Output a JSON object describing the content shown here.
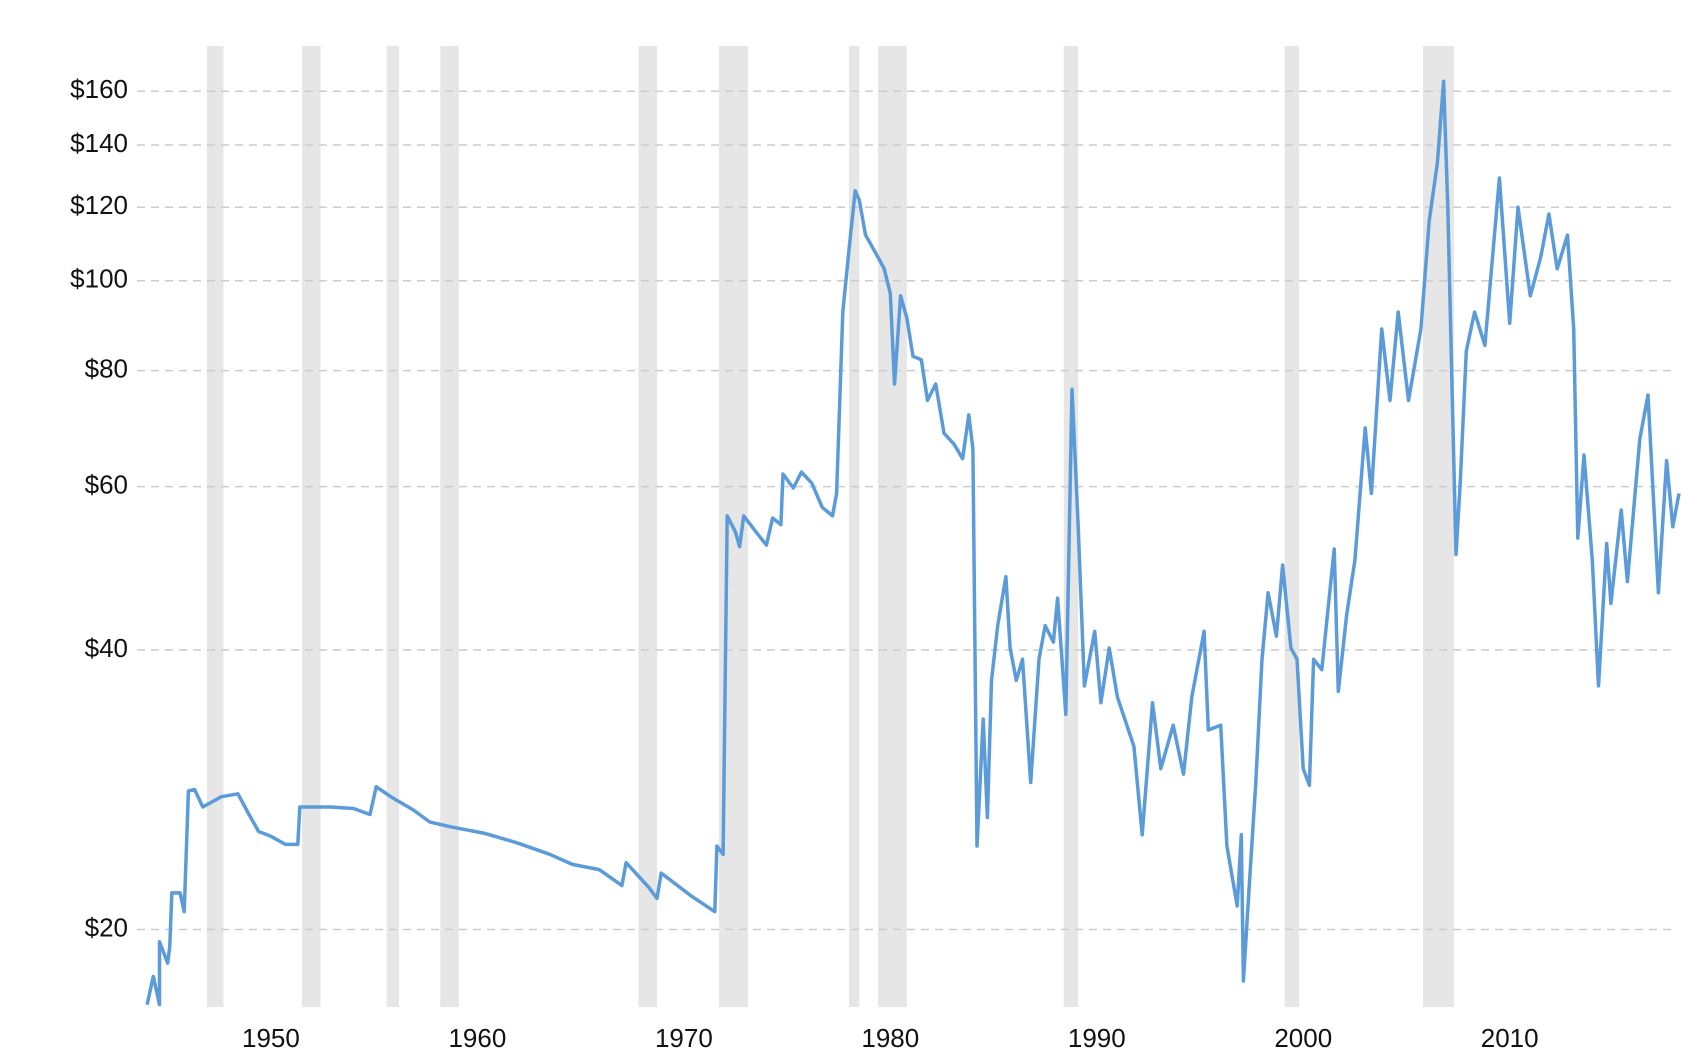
{
  "chart_data": {
    "type": "line",
    "log_y": true,
    "grid": true,
    "color": "#5b9bd9",
    "shade_color": "#e6e6e6",
    "xlim": [
      1943.9,
      2018.2
    ],
    "ylim": [
      16.5,
      179
    ],
    "xticks": [
      1950,
      1960,
      1970,
      1980,
      1990,
      2000,
      2010
    ],
    "yticks": [
      {
        "value": 20,
        "label": "$20"
      },
      {
        "value": 40,
        "label": "$40"
      },
      {
        "value": 60,
        "label": "$60"
      },
      {
        "value": 80,
        "label": "$80"
      },
      {
        "value": 100,
        "label": "$100"
      },
      {
        "value": 120,
        "label": "$120"
      },
      {
        "value": 140,
        "label": "$140"
      },
      {
        "value": 160,
        "label": "$160"
      }
    ],
    "shaded_regions": [
      [
        1946.9,
        1947.7
      ],
      [
        1951.5,
        1952.4
      ],
      [
        1955.6,
        1956.2
      ],
      [
        1958.2,
        1959.1
      ],
      [
        1967.8,
        1968.7
      ],
      [
        1971.7,
        1973.1
      ],
      [
        1978.0,
        1978.5
      ],
      [
        1979.4,
        1980.8
      ],
      [
        1988.4,
        1989.1
      ],
      [
        1999.1,
        1999.8
      ],
      [
        2005.8,
        2007.3
      ]
    ],
    "x": [
      1944.0,
      1944.3,
      1944.6,
      1944.6,
      1945.0,
      1945.1,
      1945.2,
      1945.6,
      1945.8,
      1946.0,
      1946.3,
      1946.7,
      1947.6,
      1948.4,
      1948.9,
      1949.4,
      1950.0,
      1950.7,
      1951.3,
      1951.4,
      1952.9,
      1954.0,
      1954.8,
      1955.1,
      1955.8,
      1956.9,
      1957.7,
      1958.7,
      1960.3,
      1961.9,
      1963.5,
      1964.6,
      1965.9,
      1967.0,
      1967.2,
      1968.3,
      1968.7,
      1968.9,
      1970.4,
      1971.5,
      1971.6,
      1971.9,
      1972.1,
      1972.5,
      1972.7,
      1972.9,
      1973.5,
      1974.0,
      1974.3,
      1974.7,
      1974.8,
      1975.3,
      1975.7,
      1976.2,
      1976.7,
      1977.2,
      1977.4,
      1977.7,
      1978.0,
      1978.3,
      1978.5,
      1978.8,
      1979.2,
      1979.7,
      1980.0,
      1980.2,
      1980.5,
      1980.8,
      1981.1,
      1981.5,
      1981.8,
      1982.2,
      1982.6,
      1983.1,
      1983.5,
      1983.8,
      1984.0,
      1984.2,
      1984.5,
      1984.7,
      1984.9,
      1985.2,
      1985.6,
      1985.8,
      1986.1,
      1986.4,
      1986.8,
      1987.2,
      1987.5,
      1987.9,
      1988.1,
      1988.5,
      1988.8,
      1989.1,
      1989.4,
      1989.9,
      1990.2,
      1990.6,
      1991.0,
      1991.8,
      1992.2,
      1992.7,
      1993.1,
      1993.7,
      1994.2,
      1994.6,
      1995.2,
      1995.4,
      1996.0,
      1996.3,
      1996.8,
      1997.0,
      1997.1,
      1997.4,
      1997.7,
      1998.0,
      1998.3,
      1998.7,
      1999.0,
      1999.4,
      1999.7,
      2000.0,
      2000.3,
      2000.5,
      2000.9,
      2001.5,
      2001.7,
      2002.1,
      2002.5,
      2003.0,
      2003.3,
      2003.8,
      2004.2,
      2004.6,
      2005.1,
      2005.7,
      2006.1,
      2006.5,
      2006.8,
      2007.0,
      2007.4,
      2007.6,
      2007.9,
      2008.3,
      2008.8,
      2009.5,
      2010.0,
      2010.4,
      2011.0,
      2011.5,
      2011.9,
      2012.3,
      2012.8,
      2013.1,
      2013.3,
      2013.6,
      2014.0,
      2014.3,
      2014.7,
      2014.9,
      2015.4,
      2015.7,
      2016.3,
      2016.7,
      2017.2,
      2017.6,
      2017.9,
      2018.2
    ],
    "values": [
      16.6,
      17.8,
      16.6,
      19.4,
      18.4,
      19.2,
      21.9,
      21.9,
      20.9,
      28.2,
      28.3,
      27.1,
      27.8,
      28.0,
      26.7,
      25.5,
      25.2,
      24.7,
      24.7,
      27.1,
      27.1,
      27.0,
      26.6,
      28.5,
      27.8,
      26.9,
      26.1,
      25.8,
      25.4,
      24.8,
      24.1,
      23.5,
      23.2,
      22.3,
      23.6,
      22.2,
      21.6,
      23.0,
      21.7,
      20.9,
      24.6,
      24.1,
      55.8,
      53.6,
      51.7,
      55.8,
      53.6,
      51.9,
      55.5,
      54.6,
      61.9,
      59.8,
      62.2,
      60.5,
      57.0,
      55.8,
      59.0,
      92.5,
      108,
      125,
      122,
      112,
      108,
      103.1,
      96.9,
      77.4,
      96.3,
      91.2,
      82.9,
      82.2,
      74.3,
      77.4,
      68.5,
      66.6,
      64.3,
      71.7,
      65.9,
      24.6,
      33.7,
      26.4,
      37.1,
      42.5,
      48.0,
      40.2,
      37.1,
      39.1,
      28.8,
      39.1,
      42.5,
      40.8,
      45.5,
      34.1,
      76.4,
      54.3,
      36.6,
      41.9,
      35.1,
      40.2,
      35.6,
      31.5,
      25.3,
      35.1,
      29.8,
      33.2,
      29.4,
      35.6,
      41.9,
      32.8,
      33.2,
      24.6,
      21.2,
      25.3,
      17.6,
      22.6,
      28.8,
      39.1,
      46.1,
      41.4,
      49.4,
      40.2,
      39.1,
      29.8,
      28.6,
      39.1,
      38.1,
      51.4,
      36.1,
      43.6,
      50.0,
      69.4,
      59.0,
      88.7,
      74.3,
      92.5,
      74.3,
      88.7,
      116,
      134,
      164,
      120,
      50.7,
      60.5,
      84.0,
      92.5,
      85.2,
      129,
      90.0,
      120,
      96.3,
      106,
      118,
      103,
      112,
      88.7,
      52.8,
      64.9,
      50.0,
      36.6,
      52.1,
      44.9,
      56.6,
      47.4,
      67.5,
      75.3,
      46.1,
      64.0,
      54.3,
      59.0
    ]
  }
}
